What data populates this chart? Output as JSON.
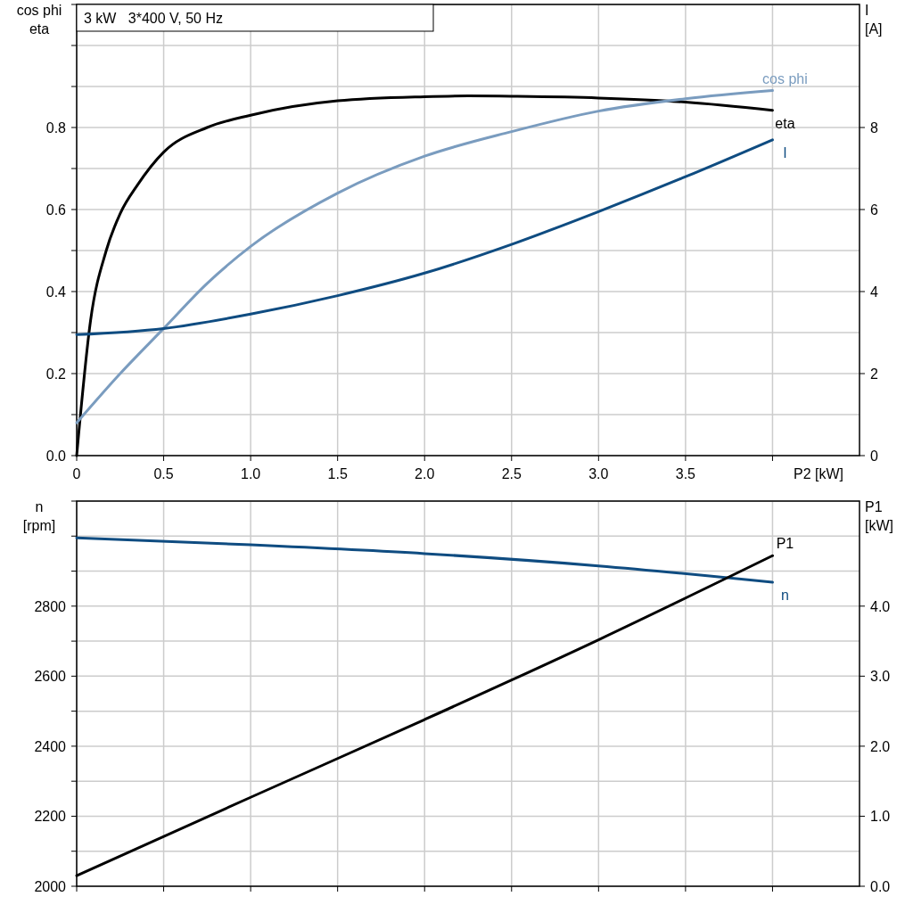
{
  "chart_data": [
    {
      "type": "line",
      "title": "3 kW   3*400 V, 50 Hz",
      "xlabel": "P2 [kW]",
      "ylabel": "cos phi\neta",
      "y2label": "I\n[A]",
      "grid": true,
      "xlim": [
        0,
        4.5
      ],
      "xticks": [
        {
          "value": 0,
          "label": "0"
        },
        0.5,
        {
          "value": 1,
          "label": "1.0"
        },
        1.5,
        {
          "value": 2,
          "label": "2.0"
        },
        2.5,
        {
          "value": 3,
          "label": "3.0"
        },
        3.5,
        {
          "value": 4,
          "label": null
        }
      ],
      "ylim": [
        0,
        1.1
      ],
      "yticks": [
        {
          "value": 0,
          "label": "0.0"
        },
        {
          "value": 0.1,
          "label": null
        },
        0.2,
        {
          "value": 0.3,
          "label": null
        },
        0.4,
        {
          "value": 0.5,
          "label": null
        },
        0.6,
        {
          "value": 0.7,
          "label": null
        },
        0.8,
        {
          "value": 0.9,
          "label": null
        },
        {
          "value": 1,
          "label": null
        },
        {
          "value": 1.1,
          "label": null
        }
      ],
      "y2lim": [
        0,
        11
      ],
      "y2ticks": [
        0,
        2,
        4,
        6,
        8
      ],
      "series": [
        {
          "name": "eta",
          "color": "#000000",
          "x": [
            0,
            0.08,
            0.17,
            0.25,
            0.35,
            0.5,
            0.75,
            1,
            1.5,
            2,
            2.25,
            2.5,
            3,
            3.5,
            4
          ],
          "values": [
            0,
            0.33,
            0.5,
            0.59,
            0.66,
            0.74,
            0.8,
            0.83,
            0.865,
            0.875,
            0.877,
            0.876,
            0.872,
            0.862,
            0.842
          ]
        },
        {
          "name": "cos phi",
          "color": "#7a9cbf",
          "x": [
            0,
            0.25,
            0.5,
            0.75,
            1,
            1.5,
            2,
            2.5,
            3,
            3.5,
            4
          ],
          "values": [
            0.08,
            0.2,
            0.31,
            0.42,
            0.51,
            0.64,
            0.73,
            0.79,
            0.84,
            0.87,
            0.89
          ]
        },
        {
          "name": "I",
          "color": "#0f4c81",
          "axis": "y2",
          "x": [
            0,
            0.5,
            1,
            1.5,
            2,
            2.5,
            3,
            3.5,
            4
          ],
          "values": [
            2.95,
            3.1,
            3.45,
            3.9,
            4.45,
            5.15,
            5.95,
            6.8,
            7.7
          ]
        }
      ]
    },
    {
      "type": "line",
      "ylabel": "n\n[rpm]",
      "y2label": "P1\n[kW]",
      "grid": true,
      "tick_labels": "y",
      "xlim": [
        0,
        4.5
      ],
      "xticks": [
        0,
        0.5,
        1,
        1.5,
        2,
        2.5,
        3,
        3.5,
        4
      ],
      "ylim": [
        2000,
        3100
      ],
      "yticks": [
        2000,
        {
          "value": 2100,
          "label": null
        },
        2200,
        {
          "value": 2300,
          "label": null
        },
        2400,
        {
          "value": 2500,
          "label": null
        },
        2600,
        {
          "value": 2700,
          "label": null
        },
        2800,
        {
          "value": 2900,
          "label": null
        },
        {
          "value": 3000,
          "label": null
        },
        {
          "value": 3100,
          "label": null
        }
      ],
      "y2lim": [
        0,
        5.5
      ],
      "y2ticks": [
        {
          "value": 0,
          "label": "0.0"
        },
        {
          "value": 1,
          "label": "1.0"
        },
        {
          "value": 2,
          "label": "2.0"
        },
        {
          "value": 3,
          "label": "3.0"
        },
        {
          "value": 4,
          "label": "4.0"
        }
      ],
      "series": [
        {
          "name": "n",
          "color": "#0f4c81",
          "x": [
            0,
            1,
            2,
            3,
            4
          ],
          "values": [
            2995,
            2975,
            2950,
            2915,
            2868
          ]
        },
        {
          "name": "P1",
          "color": "#000000",
          "axis": "y2",
          "x": [
            0,
            1,
            2,
            3,
            4
          ],
          "values": [
            0.15,
            1.27,
            2.38,
            3.52,
            4.72
          ]
        }
      ]
    }
  ]
}
